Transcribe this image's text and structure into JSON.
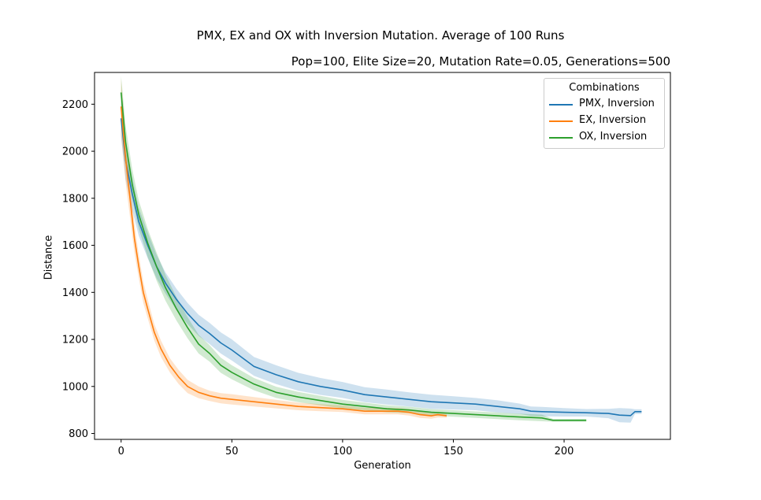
{
  "chart_data": {
    "type": "line",
    "title": "PMX, EX and OX with Inversion Mutation. Average of 100 Runs",
    "subtitle": "Pop=100, Elite Size=20, Mutation Rate=0.05, Generations=500",
    "xlabel": "Generation",
    "ylabel": "Distance",
    "xlim": [
      -12,
      248
    ],
    "ylim": [
      775,
      2335
    ],
    "xticks": [
      0,
      50,
      100,
      150,
      200
    ],
    "yticks": [
      800,
      1000,
      1200,
      1400,
      1600,
      1800,
      2000,
      2200
    ],
    "grid": false,
    "legend": {
      "title": "Combinations",
      "placement": "top-right"
    },
    "series": [
      {
        "name": "PMX, Inversion",
        "color": "#1f77b4",
        "x": [
          0,
          2,
          5,
          8,
          12,
          16,
          20,
          25,
          30,
          35,
          40,
          45,
          50,
          60,
          70,
          80,
          90,
          100,
          110,
          120,
          130,
          140,
          150,
          160,
          170,
          180,
          185,
          190,
          200,
          210,
          220,
          225,
          230,
          232,
          235
        ],
        "y": [
          2140,
          1960,
          1820,
          1700,
          1600,
          1510,
          1440,
          1370,
          1310,
          1260,
          1225,
          1185,
          1155,
          1085,
          1050,
          1020,
          1000,
          985,
          965,
          955,
          945,
          935,
          930,
          925,
          915,
          905,
          895,
          893,
          890,
          888,
          885,
          878,
          876,
          893,
          893
        ],
        "band": [
          80,
          80,
          70,
          60,
          55,
          50,
          45,
          45,
          45,
          45,
          45,
          45,
          45,
          40,
          40,
          38,
          36,
          34,
          32,
          32,
          30,
          30,
          28,
          26,
          26,
          22,
          20,
          20,
          18,
          16,
          20,
          30,
          30,
          10,
          10
        ]
      },
      {
        "name": "EX, Inversion",
        "color": "#ff7f0e",
        "x": [
          0,
          2,
          4,
          6,
          8,
          10,
          12,
          15,
          18,
          22,
          26,
          30,
          35,
          40,
          45,
          50,
          60,
          70,
          80,
          90,
          100,
          110,
          120,
          125,
          130,
          135,
          140,
          143,
          147
        ],
        "y": [
          2190,
          1970,
          1800,
          1630,
          1510,
          1400,
          1330,
          1230,
          1160,
          1090,
          1040,
          1000,
          975,
          960,
          950,
          945,
          935,
          925,
          915,
          910,
          905,
          895,
          895,
          895,
          890,
          880,
          875,
          880,
          875
        ],
        "band": [
          120,
          100,
          80,
          60,
          50,
          45,
          40,
          35,
          35,
          30,
          30,
          28,
          25,
          22,
          22,
          22,
          20,
          18,
          16,
          15,
          14,
          14,
          14,
          14,
          14,
          14,
          12,
          12,
          8
        ]
      },
      {
        "name": "OX, Inversion",
        "color": "#2ca02c",
        "x": [
          0,
          2,
          5,
          8,
          12,
          16,
          20,
          25,
          30,
          35,
          40,
          45,
          50,
          60,
          70,
          80,
          90,
          100,
          110,
          120,
          130,
          140,
          150,
          160,
          170,
          180,
          185,
          190,
          195,
          200,
          210
        ],
        "y": [
          2250,
          2040,
          1860,
          1730,
          1610,
          1510,
          1420,
          1330,
          1250,
          1180,
          1140,
          1090,
          1060,
          1010,
          975,
          955,
          940,
          925,
          915,
          905,
          900,
          890,
          885,
          880,
          875,
          870,
          868,
          866,
          856,
          856,
          856
        ],
        "band": [
          70,
          70,
          65,
          60,
          60,
          60,
          55,
          50,
          45,
          40,
          35,
          32,
          30,
          26,
          24,
          22,
          20,
          18,
          16,
          15,
          14,
          14,
          14,
          14,
          14,
          14,
          14,
          14,
          6,
          6,
          6
        ]
      }
    ]
  }
}
